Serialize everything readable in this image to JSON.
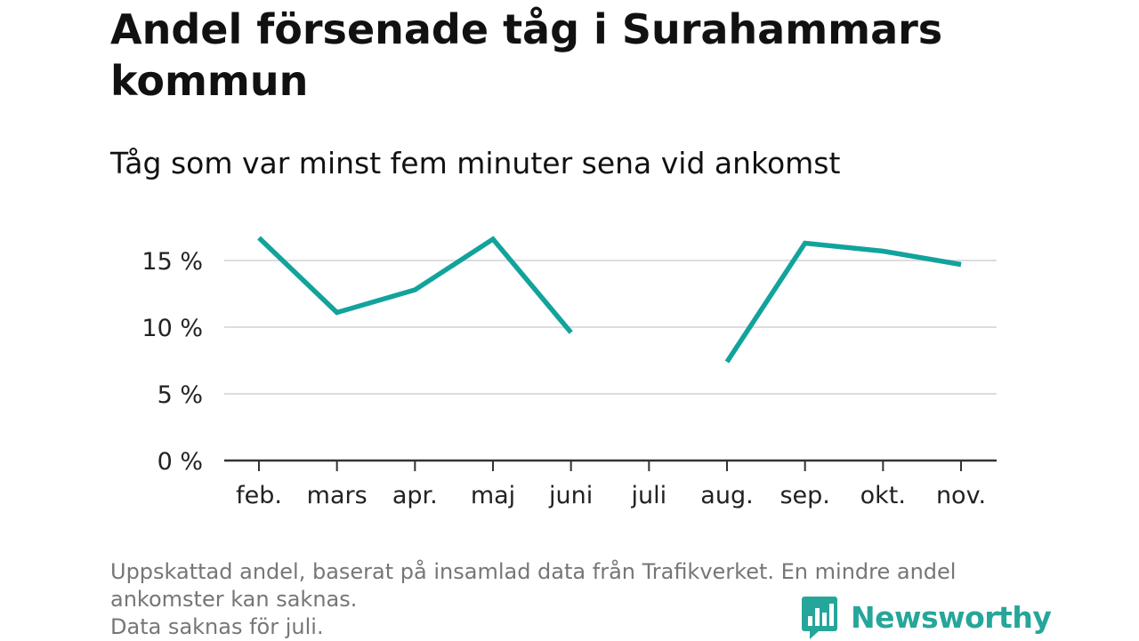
{
  "title": "Andel försenade tåg i Surahammars kommun",
  "subtitle": "Tåg som var minst fem minuter sena vid ankomst",
  "footnote": {
    "line1": "Uppskattad andel, baserat på insamlad data från Trafikverket. En mindre andel",
    "line2": "ankomster kan saknas.",
    "line3": "Data saknas för juli."
  },
  "logo": {
    "text": "Newsworthy",
    "icon": "bar-chart-speech-bubble-icon"
  },
  "colors": {
    "line": "#12a39b",
    "grid": "#dddddd",
    "axis": "#333333",
    "brand": "#26a69a",
    "footnote": "#767676"
  },
  "chart_data": {
    "type": "line",
    "categories": [
      "feb.",
      "mars",
      "apr.",
      "maj",
      "juni",
      "juli",
      "aug.",
      "sep.",
      "okt.",
      "nov."
    ],
    "series": [
      {
        "values": [
          16.7,
          11.1,
          12.8,
          16.6,
          9.6,
          null,
          7.4,
          16.3,
          15.7,
          14.7
        ]
      }
    ],
    "yticks": [
      "0 %",
      "5 %",
      "10 %",
      "15 %"
    ],
    "ytick_values": [
      0,
      5,
      10,
      15
    ],
    "ylim": [
      0,
      17
    ],
    "grid": true,
    "legend": "none"
  }
}
